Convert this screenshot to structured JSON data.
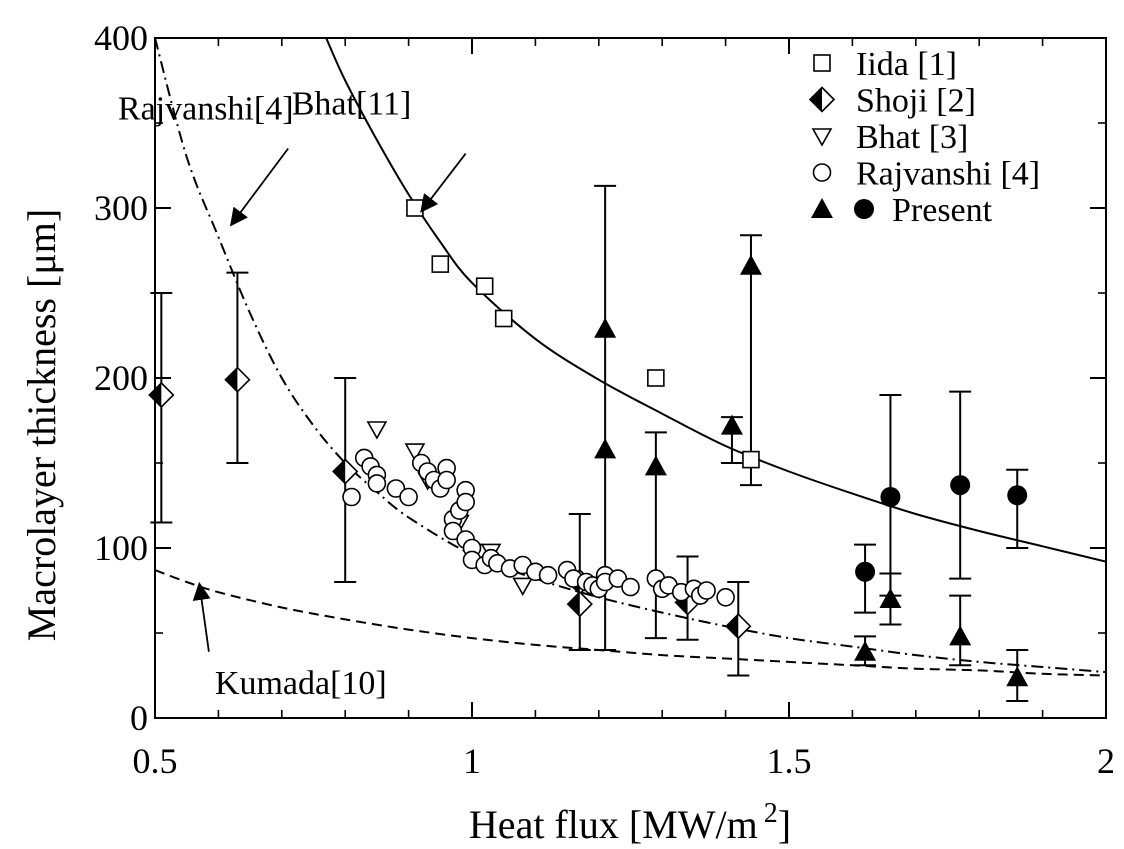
{
  "chart_data": {
    "type": "scatter",
    "xlabel": "Heat flux [MW/m",
    "xlabel_sup": "2",
    "xlabel_end": "]",
    "ylabel": "Macrolayer thickness [μm]",
    "xlim": [
      0.5,
      2
    ],
    "ylim": [
      0,
      400
    ],
    "x_ticks": [
      0.5,
      1,
      1.5,
      2
    ],
    "x_tick_labels": [
      "0.5",
      "1",
      "1.5",
      "2"
    ],
    "y_ticks": [
      0,
      100,
      200,
      300,
      400
    ],
    "y_tick_labels": [
      "0",
      "100",
      "200",
      "300",
      "400"
    ],
    "grid": false,
    "legend_position": "top-right",
    "legend": [
      "Iida [1]",
      "Shoji [2]",
      "Bhat [3]",
      "Rajvanshi [4]",
      "Present"
    ],
    "series": [
      {
        "name": "Iida [1]",
        "marker": "open-square",
        "points": [
          [
            0.91,
            300
          ],
          [
            0.95,
            267
          ],
          [
            1.02,
            254
          ],
          [
            1.05,
            235
          ],
          [
            1.29,
            200
          ],
          [
            1.44,
            152
          ]
        ]
      },
      {
        "name": "Shoji [2]",
        "marker": "half-filled-diamond",
        "points": [
          [
            0.51,
            190
          ],
          [
            0.63,
            199
          ],
          [
            0.8,
            145
          ],
          [
            1.17,
            80
          ],
          [
            1.17,
            67
          ],
          [
            1.34,
            68
          ],
          [
            1.42,
            54
          ]
        ],
        "error_bars": [
          {
            "x": 0.51,
            "low": 115,
            "high": 250
          },
          {
            "x": 0.63,
            "low": 150,
            "high": 262
          },
          {
            "x": 0.8,
            "low": 80,
            "high": 200
          },
          {
            "x": 1.17,
            "low": 40,
            "high": 120
          },
          {
            "x": 1.34,
            "low": 46,
            "high": 95
          },
          {
            "x": 1.42,
            "low": 25,
            "high": 80
          }
        ]
      },
      {
        "name": "Bhat [3]",
        "marker": "open-triangle-down",
        "points": [
          [
            0.85,
            170
          ],
          [
            0.91,
            157
          ],
          [
            0.93,
            140
          ],
          [
            0.98,
            115
          ],
          [
            1.0,
            98
          ],
          [
            1.03,
            98
          ],
          [
            1.08,
            78
          ]
        ]
      },
      {
        "name": "Rajvanshi [4]",
        "marker": "open-circle",
        "points": [
          [
            0.81,
            130
          ],
          [
            0.83,
            153
          ],
          [
            0.84,
            148
          ],
          [
            0.85,
            143
          ],
          [
            0.85,
            138
          ],
          [
            0.88,
            135
          ],
          [
            0.9,
            130
          ],
          [
            0.92,
            150
          ],
          [
            0.93,
            145
          ],
          [
            0.94,
            140
          ],
          [
            0.95,
            135
          ],
          [
            0.96,
            147
          ],
          [
            0.96,
            140
          ],
          [
            0.97,
            117
          ],
          [
            0.97,
            110
          ],
          [
            0.98,
            122
          ],
          [
            0.99,
            134
          ],
          [
            0.99,
            127
          ],
          [
            0.99,
            105
          ],
          [
            1.0,
            100
          ],
          [
            1.0,
            93
          ],
          [
            1.02,
            90
          ],
          [
            1.03,
            94
          ],
          [
            1.04,
            91
          ],
          [
            1.06,
            88
          ],
          [
            1.08,
            90
          ],
          [
            1.1,
            86
          ],
          [
            1.12,
            84
          ],
          [
            1.15,
            87
          ],
          [
            1.16,
            82
          ],
          [
            1.18,
            80
          ],
          [
            1.19,
            78
          ],
          [
            1.2,
            76
          ],
          [
            1.21,
            84
          ],
          [
            1.21,
            80
          ],
          [
            1.23,
            82
          ],
          [
            1.25,
            77
          ],
          [
            1.29,
            82
          ],
          [
            1.3,
            76
          ],
          [
            1.31,
            78
          ],
          [
            1.33,
            74
          ],
          [
            1.35,
            76
          ],
          [
            1.36,
            72
          ],
          [
            1.37,
            75
          ],
          [
            1.4,
            71
          ]
        ]
      },
      {
        "name": "Present",
        "marker": "filled-triangle-up",
        "points": [
          [
            1.21,
            229
          ],
          [
            1.21,
            158
          ],
          [
            1.29,
            148
          ],
          [
            1.41,
            172
          ],
          [
            1.44,
            266
          ],
          [
            1.62,
            39
          ],
          [
            1.66,
            70
          ],
          [
            1.77,
            48
          ],
          [
            1.86,
            24
          ]
        ],
        "error_bars": [
          {
            "x": 1.21,
            "low": 40,
            "high": 313
          },
          {
            "x": 1.29,
            "low": 47,
            "high": 168
          },
          {
            "x": 1.41,
            "low": 150,
            "high": 177
          },
          {
            "x": 1.44,
            "low": 137,
            "high": 284
          },
          {
            "x": 1.62,
            "low": 31,
            "high": 48
          },
          {
            "x": 1.66,
            "low": 55,
            "high": 85
          },
          {
            "x": 1.77,
            "low": 31,
            "high": 72
          },
          {
            "x": 1.86,
            "low": 10,
            "high": 40
          }
        ]
      },
      {
        "name": "Present",
        "marker": "filled-circle",
        "points": [
          [
            1.62,
            86
          ],
          [
            1.66,
            130
          ],
          [
            1.77,
            137
          ],
          [
            1.86,
            131
          ]
        ],
        "error_bars": [
          {
            "x": 1.62,
            "low": 62,
            "high": 102
          },
          {
            "x": 1.66,
            "low": 72,
            "high": 190
          },
          {
            "x": 1.77,
            "low": 82,
            "high": 192
          },
          {
            "x": 1.86,
            "low": 100,
            "high": 146
          }
        ]
      }
    ],
    "curves": [
      {
        "label": "Bhat[11]",
        "style": "solid",
        "points": [
          [
            0.77,
            400
          ],
          [
            0.8,
            375
          ],
          [
            0.85,
            340
          ],
          [
            0.9,
            308
          ],
          [
            0.95,
            280
          ],
          [
            1.0,
            256
          ],
          [
            1.1,
            223
          ],
          [
            1.2,
            199
          ],
          [
            1.3,
            179
          ],
          [
            1.4,
            160
          ],
          [
            1.5,
            145
          ],
          [
            1.6,
            132
          ],
          [
            1.7,
            120
          ],
          [
            1.8,
            110
          ],
          [
            1.9,
            101
          ],
          [
            2.0,
            92
          ]
        ]
      },
      {
        "label": "Rajvanshi[4]",
        "style": "dash-dot",
        "points": [
          [
            0.5,
            400
          ],
          [
            0.55,
            330
          ],
          [
            0.6,
            283
          ],
          [
            0.65,
            238
          ],
          [
            0.7,
            200
          ],
          [
            0.75,
            172
          ],
          [
            0.8,
            150
          ],
          [
            0.85,
            133
          ],
          [
            0.9,
            118
          ],
          [
            1.0,
            96
          ],
          [
            1.1,
            82
          ],
          [
            1.2,
            71
          ],
          [
            1.3,
            62
          ],
          [
            1.4,
            54
          ],
          [
            1.5,
            47
          ],
          [
            1.6,
            42
          ],
          [
            1.7,
            37
          ],
          [
            1.8,
            33
          ],
          [
            1.9,
            30
          ],
          [
            2.0,
            27
          ]
        ]
      },
      {
        "label": "Kumada[10]",
        "style": "dashed",
        "points": [
          [
            0.5,
            87
          ],
          [
            0.55,
            80
          ],
          [
            0.6,
            74
          ],
          [
            0.7,
            65
          ],
          [
            0.8,
            58
          ],
          [
            0.9,
            52
          ],
          [
            1.0,
            47
          ],
          [
            1.1,
            43
          ],
          [
            1.2,
            40
          ],
          [
            1.3,
            37
          ],
          [
            1.4,
            35
          ],
          [
            1.5,
            33
          ],
          [
            1.6,
            31
          ],
          [
            1.7,
            29
          ],
          [
            1.8,
            28
          ],
          [
            1.9,
            26
          ],
          [
            2.0,
            25
          ]
        ]
      }
    ],
    "annotations": [
      {
        "text": "Rajvanshi[4]",
        "x": 0.58,
        "y": 352,
        "arrow_to": [
          0.62,
          290
        ]
      },
      {
        "text": "Bhat[11]",
        "x": 0.81,
        "y": 355,
        "arrow_to": [
          0.92,
          298
        ]
      },
      {
        "text": "Kumada[10]",
        "x": 0.73,
        "y": 14,
        "arrow_to": [
          0.57,
          79
        ]
      }
    ]
  }
}
